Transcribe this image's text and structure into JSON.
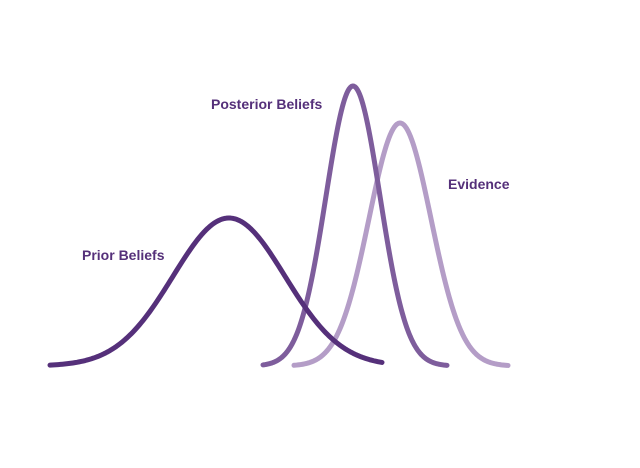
{
  "colors": {
    "background": "#ffffff",
    "prior": "#55307a",
    "posterior": "#7e5d9c",
    "evidence": "#b49dc7",
    "label_text": "#55307a"
  },
  "curves": [
    {
      "id": "prior",
      "label": "Prior Beliefs",
      "shape": "bell-curve",
      "relative_peak": 0.6,
      "relative_spread": "wide"
    },
    {
      "id": "posterior",
      "label": "Posterior Beliefs",
      "shape": "bell-curve",
      "relative_peak": 1.0,
      "relative_spread": "narrow"
    },
    {
      "id": "evidence",
      "label": "Evidence",
      "shape": "bell-curve",
      "relative_peak": 0.87,
      "relative_spread": "narrow"
    }
  ],
  "labels": {
    "prior": "Prior Beliefs",
    "posterior": "Posterior Beliefs",
    "evidence": "Evidence"
  }
}
